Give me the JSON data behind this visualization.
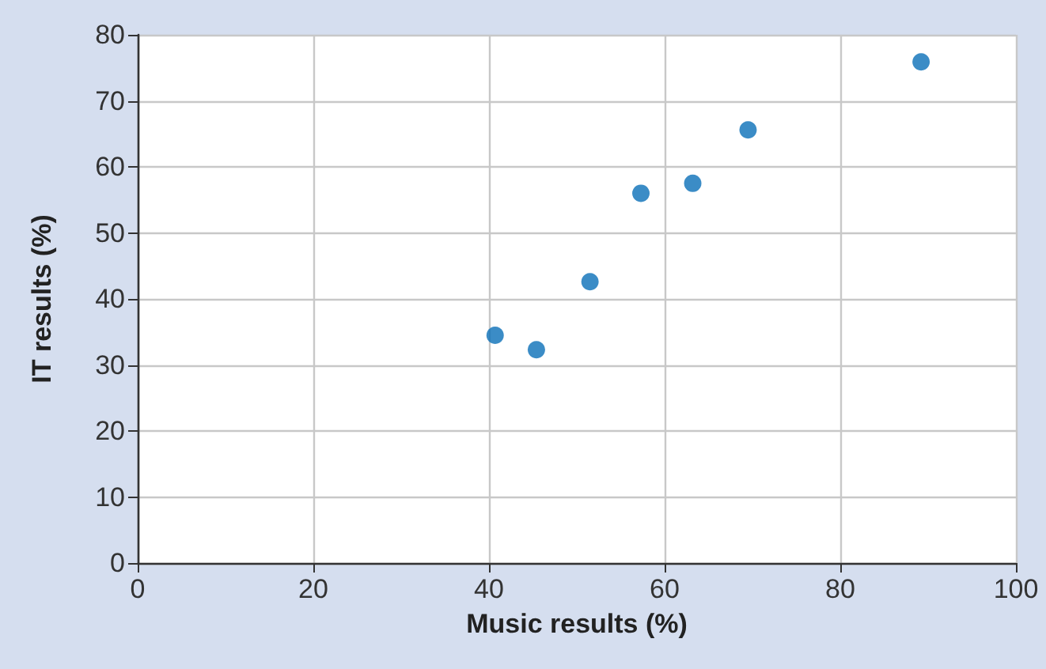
{
  "chart_data": {
    "type": "scatter",
    "xlabel": "Music results (%)",
    "ylabel": "IT results (%)",
    "x": [
      40.7,
      45.4,
      51.5,
      57.3,
      63.2,
      69.5,
      89.2
    ],
    "values": [
      34.5,
      32.3,
      42.6,
      56.0,
      57.5,
      65.6,
      75.9
    ],
    "color": "#0a6fb8",
    "marker": "circle",
    "xlim": [
      0,
      100
    ],
    "xticks": [
      0,
      20,
      40,
      60,
      80,
      100
    ],
    "ylim": [
      0,
      80
    ],
    "yticks": [
      0,
      10,
      20,
      30,
      40,
      50,
      60,
      70,
      80
    ],
    "grid": true
  }
}
